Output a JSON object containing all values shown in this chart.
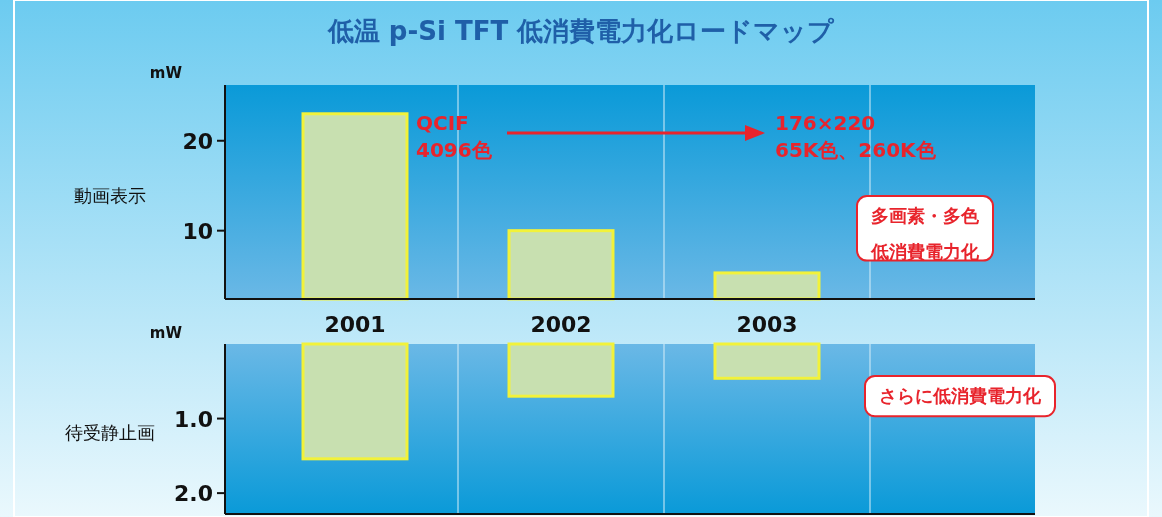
{
  "chart_data": [
    {
      "type": "bar",
      "title": "低温 p-Si  TFT 低消費電力化ロードマップ",
      "ylabel": "動画表示",
      "categories": [
        "2001",
        "2002",
        "2003",
        null
      ],
      "series": [
        {
          "color": "#c8e0b0",
          "values": [
            23,
            10,
            5.3,
            null
          ]
        }
      ],
      "ylim": [
        2.4,
        26.2
      ],
      "yticks": [
        10,
        20
      ],
      "grid": "x",
      "annotations": [
        "mW",
        "QCIF\n4096色",
        "176×220\n65K色、260K色",
        "多画素・多色",
        "低消費電力化"
      ]
    },
    {
      "type": "bar",
      "ylabel": "待受静止画",
      "categories": [
        null,
        null,
        null,
        null
      ],
      "series": [
        {
          "color": "#c8e0b0",
          "values": [
            1.54,
            0.7,
            0.46,
            null
          ]
        }
      ],
      "ylim": [
        2.28,
        0
      ],
      "yticks": [
        {
          "value": 1,
          "label": "1.0"
        },
        {
          "value": 2,
          "label": "2.0"
        }
      ],
      "grid": "x",
      "tick_labels": "y",
      "annotations": [
        "mW",
        "さらに低消費電力化"
      ]
    }
  ]
}
